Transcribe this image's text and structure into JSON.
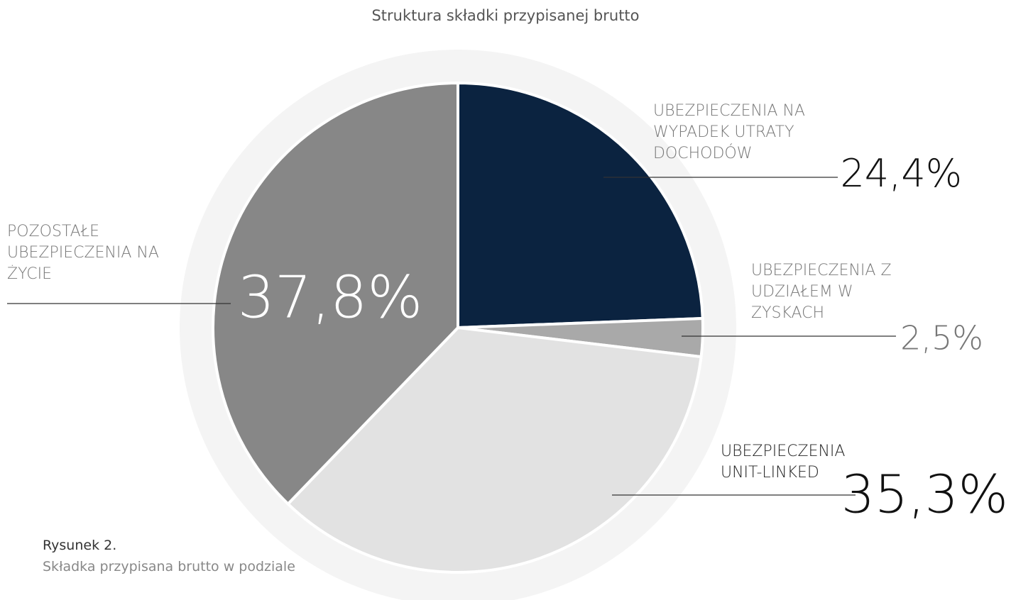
{
  "chart_data": {
    "type": "pie",
    "title": "Struktura składki przypisanej brutto",
    "categories": [
      "UBEZPIECZENIA NA WYPADEK UTRATY DOCHODÓW",
      "UBEZPIECZENIA Z UDZIAŁEM W ZYSKACH",
      "UBEZPIECZENIA UNIT-LINKED",
      "POZOSTAŁE UBEZPIECZENIA NA ŻYCIE"
    ],
    "values": [
      24.4,
      2.5,
      35.3,
      37.8
    ],
    "value_labels": [
      "24,4%",
      "2,5%",
      "35,3%",
      "37,8%"
    ],
    "colors": [
      "#0b2340",
      "#a9a9a9",
      "#e2e2e2",
      "#878787"
    ]
  },
  "caption": {
    "label": "Rysunek 2.",
    "text": "Składka przypisana brutto w podziale"
  }
}
